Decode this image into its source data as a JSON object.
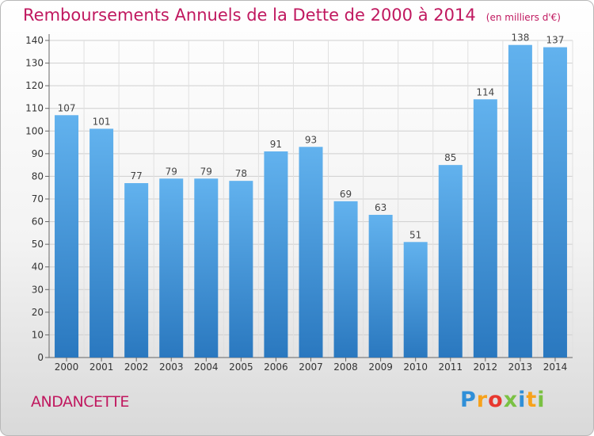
{
  "title": "Remboursements Annuels de la Dette de 2000 à 2014",
  "unit": "(en milliers d'€)",
  "commune": "ANDANCETTE",
  "brand": {
    "letters": [
      "P",
      "r",
      "o",
      "x",
      "i",
      "t",
      "i"
    ],
    "colors": [
      "#2f8fd8",
      "#f7a21b",
      "#e8382f",
      "#7ac143",
      "#2f8fd8",
      "#f7a21b",
      "#7ac143"
    ]
  },
  "colors": {
    "title": "#c0185f",
    "bar_top": "#62b2ee",
    "bar_bottom": "#2a78bf"
  },
  "chart_data": {
    "type": "bar",
    "categories": [
      "2000",
      "2001",
      "2002",
      "2003",
      "2004",
      "2005",
      "2006",
      "2007",
      "2008",
      "2009",
      "2010",
      "2011",
      "2012",
      "2013",
      "2014"
    ],
    "values": [
      107,
      101,
      77,
      79,
      79,
      78,
      91,
      93,
      69,
      63,
      51,
      85,
      114,
      138,
      137
    ],
    "ylim": [
      0,
      140
    ],
    "yticks": [
      0,
      10,
      20,
      30,
      40,
      50,
      60,
      70,
      80,
      90,
      100,
      110,
      120,
      130,
      140
    ],
    "grid": true
  }
}
